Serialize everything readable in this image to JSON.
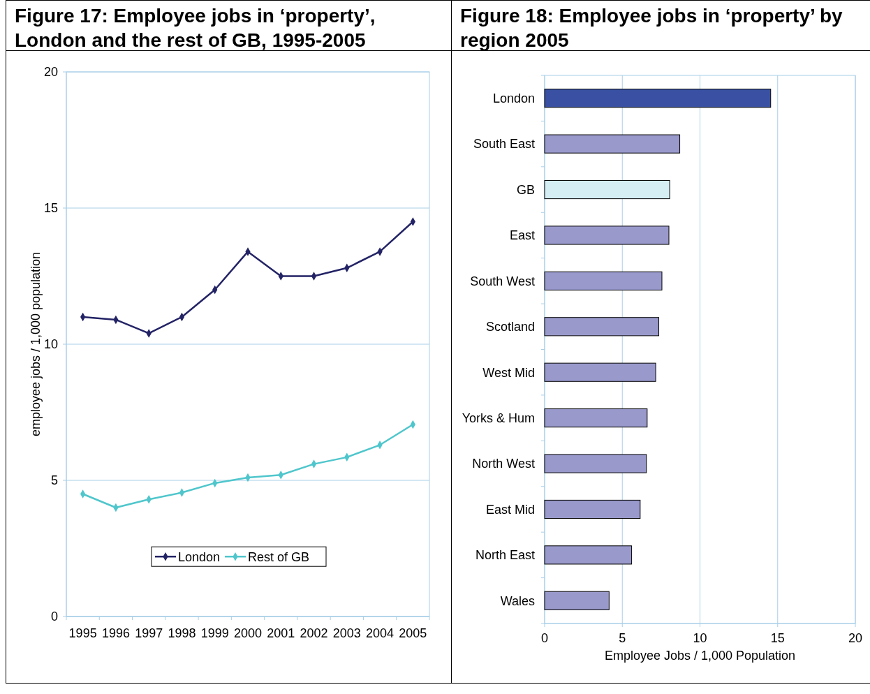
{
  "chart_data": [
    {
      "type": "line",
      "title": "Figure 17: Employee jobs in ‘property’, London and the rest of GB, 1995-2005",
      "ylabel": "employee jobs / 1,000 population",
      "categories": [
        "1995",
        "1996",
        "1997",
        "1998",
        "1999",
        "2000",
        "2001",
        "2002",
        "2003",
        "2004",
        "2005"
      ],
      "series": [
        {
          "name": "London",
          "color": "#232366",
          "values": [
            11.0,
            10.9,
            10.4,
            11.0,
            12.0,
            13.4,
            12.5,
            12.5,
            12.8,
            13.4,
            14.5
          ]
        },
        {
          "name": "Rest of GB",
          "color": "#4fc6cc",
          "values": [
            4.5,
            4.0,
            4.3,
            4.55,
            4.9,
            5.1,
            5.2,
            5.6,
            5.85,
            6.3,
            7.05
          ]
        }
      ],
      "ylim": [
        0,
        20
      ],
      "yticks": [
        0,
        5,
        10,
        15,
        20
      ],
      "grid": "y",
      "legend": "bottom",
      "marker": "diamond",
      "line_style": "solid"
    },
    {
      "type": "bar",
      "orientation": "horizontal",
      "title": "Figure 18: Employee jobs in ‘property’ by region 2005",
      "xlabel": "Employee Jobs  / 1,000 Population",
      "categories": [
        "London",
        "South East",
        "GB",
        "East",
        "South West",
        "Scotland",
        "West Mid",
        "Yorks & Hum",
        "North West",
        "East Mid",
        "North East",
        "Wales"
      ],
      "values": [
        14.55,
        8.7,
        8.05,
        8.0,
        7.55,
        7.35,
        7.15,
        6.6,
        6.55,
        6.15,
        5.6,
        4.15
      ],
      "colors": [
        "#3a51a3",
        "#9999cc",
        "#d4eef4",
        "#9999cc",
        "#9999cc",
        "#9999cc",
        "#9999cc",
        "#9999cc",
        "#9999cc",
        "#9999cc",
        "#9999cc",
        "#9999cc"
      ],
      "xlim": [
        0,
        20
      ],
      "xticks": [
        0,
        5,
        10,
        15,
        20
      ],
      "grid": "x"
    }
  ]
}
